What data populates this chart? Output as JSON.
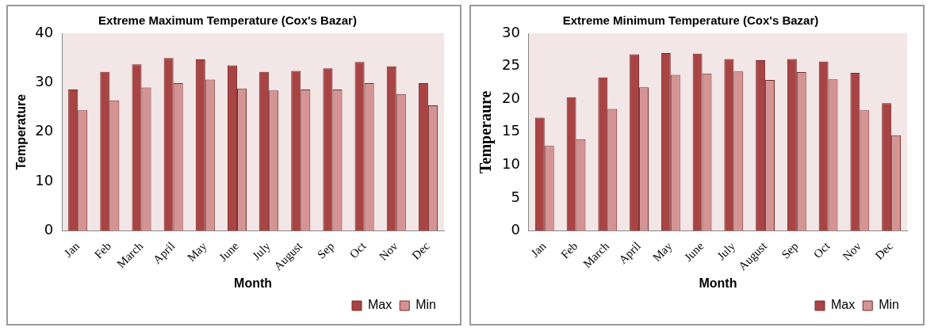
{
  "chart_data": [
    {
      "type": "bar",
      "title": "Extreme Maximum Temperature (Cox's Bazar)",
      "xlabel": "Month",
      "ylabel": "Temperature",
      "categories": [
        "Jan",
        "Feb",
        "March",
        "April",
        "May",
        "June",
        "July",
        "August",
        "Sep",
        "Oct",
        "Nov",
        "Dec"
      ],
      "ylim": [
        0,
        40
      ],
      "yticks": [
        0,
        10,
        20,
        30,
        40
      ],
      "legend": "bottom right",
      "series": [
        {
          "name": "Max",
          "color": "#a84444",
          "values": [
            28.6,
            32.2,
            33.7,
            35.0,
            34.7,
            33.5,
            32.2,
            32.4,
            32.9,
            34.2,
            33.3,
            29.9
          ]
        },
        {
          "name": "Min",
          "color": "#d49494",
          "values": [
            24.4,
            26.4,
            29.0,
            29.9,
            30.6,
            28.8,
            28.4,
            28.6,
            28.6,
            29.9,
            27.7,
            25.4
          ]
        }
      ]
    },
    {
      "type": "bar",
      "title": "Extreme Minimum Temperature (Cox's Bazar)",
      "xlabel": "Month",
      "ylabel": "Temperaure",
      "categories": [
        "Jan",
        "Feb",
        "March",
        "April",
        "May",
        "June",
        "July",
        "August",
        "Sep",
        "Oct",
        "Nov",
        "Dec"
      ],
      "ylim": [
        0,
        30
      ],
      "yticks": [
        0,
        5,
        10,
        15,
        20,
        25,
        30
      ],
      "legend": "bottom right",
      "series": [
        {
          "name": "Max",
          "color": "#a84444",
          "values": [
            17.2,
            20.3,
            23.3,
            26.8,
            27.0,
            26.9,
            26.1,
            25.9,
            26.1,
            25.7,
            24.0,
            19.4
          ]
        },
        {
          "name": "Min",
          "color": "#d49494",
          "values": [
            12.9,
            13.9,
            18.5,
            21.8,
            23.7,
            23.9,
            24.2,
            22.9,
            24.1,
            23.0,
            18.3,
            14.5
          ]
        }
      ]
    }
  ]
}
